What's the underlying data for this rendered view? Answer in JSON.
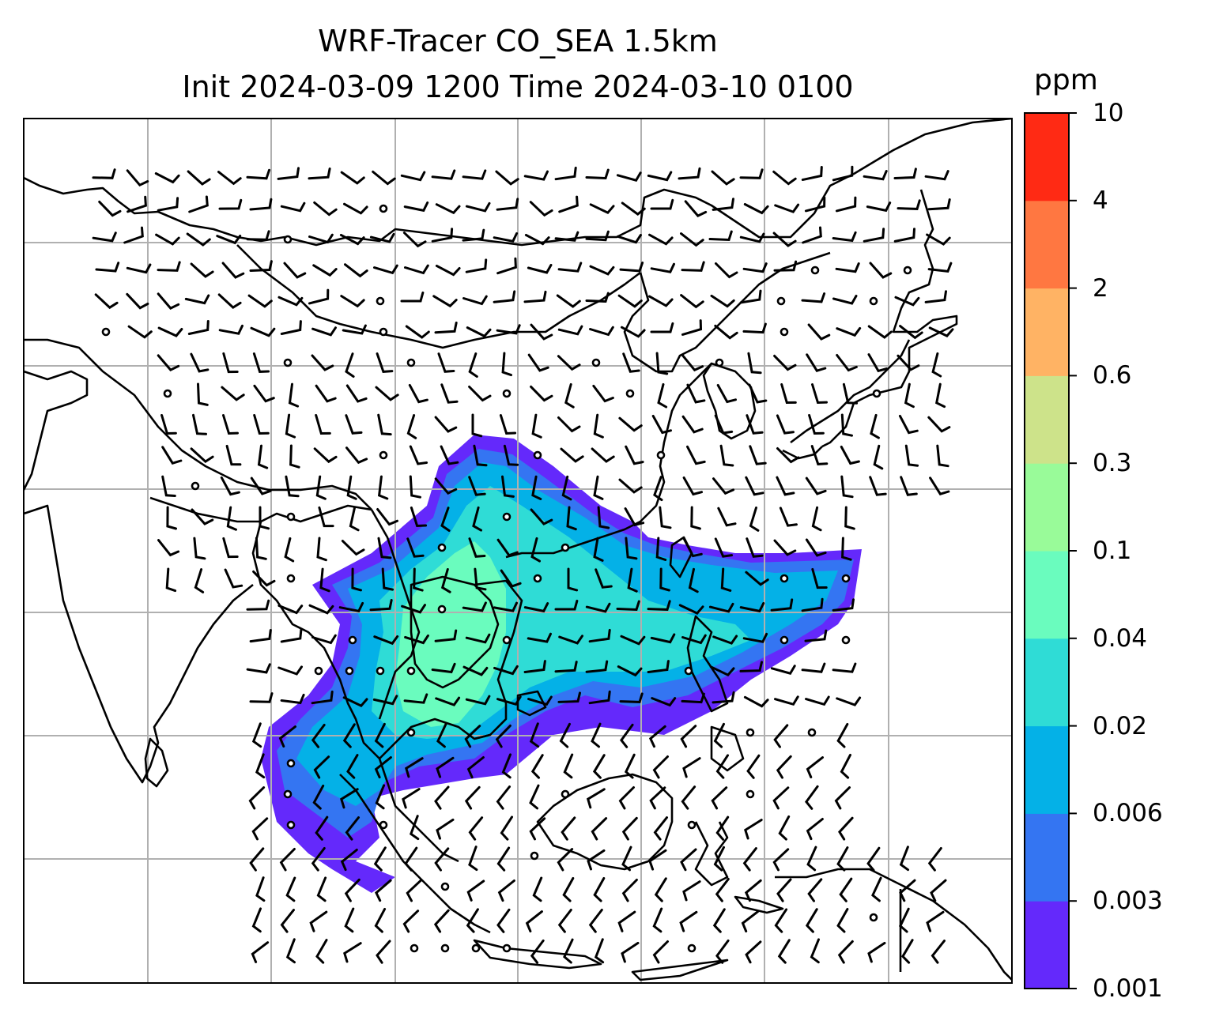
{
  "title": {
    "line1": "WRF-Tracer CO_SEA 1.5km",
    "line2": "Init 2024-03-09 1200 Time 2024-03-10 0100"
  },
  "colorbar": {
    "unit": "ppm",
    "levels": [
      "0.001",
      "0.003",
      "0.006",
      "0.02",
      "0.04",
      "0.1",
      "0.3",
      "0.6",
      "2",
      "4",
      "10"
    ],
    "colors": [
      "#6429fb",
      "#3475f2",
      "#04b1e7",
      "#2fdcd6",
      "#6afcbe",
      "#99fb99",
      "#cde38a",
      "#ffb364",
      "#ff7741",
      "#ff2a14"
    ]
  },
  "overlays": {
    "wind_barbs": true,
    "calm_circles": true,
    "coastlines": true,
    "country_borders": true,
    "gridlines": true
  }
}
